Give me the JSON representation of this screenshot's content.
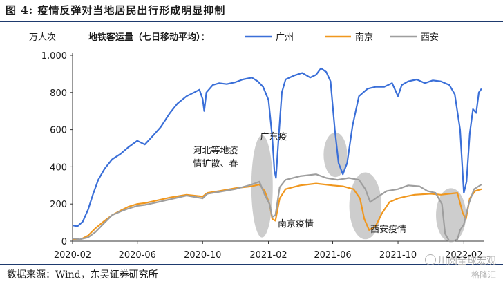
{
  "figure": {
    "title": "图 4:   疫情反弹对当地居民出行形成明显抑制",
    "source": "数据来源：Wind，东吴证券研究所",
    "watermark_top": "川阅全球宏观",
    "watermark_bottom": "格隆汇"
  },
  "chart_data": {
    "type": "line",
    "title": "地铁客运量（七日移动平均）：",
    "ylabel": "万人次",
    "ylim": [
      0,
      1000
    ],
    "yticks": [
      0,
      200,
      400,
      600,
      800,
      1000
    ],
    "ytick_labels": [
      "0",
      "200",
      "400",
      "600",
      "800",
      "1,000"
    ],
    "xticks": [
      "2020-02",
      "2020-06",
      "2020-10",
      "2021-02",
      "2021-06",
      "2021-10",
      "2022-02"
    ],
    "xlim": [
      "2020-02-01",
      "2022-03-10"
    ],
    "grid": false,
    "legend_position": "top",
    "series": [
      {
        "name": "广州",
        "color": "#3a6fd8",
        "points": [
          [
            "2020-02-01",
            85
          ],
          [
            "2020-02-10",
            80
          ],
          [
            "2020-02-20",
            105
          ],
          [
            "2020-03-01",
            170
          ],
          [
            "2020-03-10",
            250
          ],
          [
            "2020-03-20",
            330
          ],
          [
            "2020-04-01",
            390
          ],
          [
            "2020-04-15",
            440
          ],
          [
            "2020-05-01",
            470
          ],
          [
            "2020-05-15",
            505
          ],
          [
            "2020-06-01",
            540
          ],
          [
            "2020-06-15",
            520
          ],
          [
            "2020-07-01",
            570
          ],
          [
            "2020-07-15",
            615
          ],
          [
            "2020-08-01",
            690
          ],
          [
            "2020-08-15",
            740
          ],
          [
            "2020-09-01",
            780
          ],
          [
            "2020-09-15",
            800
          ],
          [
            "2020-09-25",
            815
          ],
          [
            "2020-10-01",
            765
          ],
          [
            "2020-10-04",
            700
          ],
          [
            "2020-10-08",
            800
          ],
          [
            "2020-10-20",
            840
          ],
          [
            "2020-11-01",
            850
          ],
          [
            "2020-11-15",
            845
          ],
          [
            "2020-12-01",
            855
          ],
          [
            "2020-12-15",
            870
          ],
          [
            "2021-01-01",
            880
          ],
          [
            "2021-01-12",
            860
          ],
          [
            "2021-01-22",
            830
          ],
          [
            "2021-02-01",
            760
          ],
          [
            "2021-02-08",
            560
          ],
          [
            "2021-02-12",
            380
          ],
          [
            "2021-02-15",
            340
          ],
          [
            "2021-02-20",
            560
          ],
          [
            "2021-02-26",
            800
          ],
          [
            "2021-03-05",
            870
          ],
          [
            "2021-03-20",
            890
          ],
          [
            "2021-04-05",
            905
          ],
          [
            "2021-04-20",
            880
          ],
          [
            "2021-05-01",
            895
          ],
          [
            "2021-05-10",
            930
          ],
          [
            "2021-05-20",
            910
          ],
          [
            "2021-05-28",
            860
          ],
          [
            "2021-06-05",
            600
          ],
          [
            "2021-06-12",
            420
          ],
          [
            "2021-06-20",
            360
          ],
          [
            "2021-06-28",
            420
          ],
          [
            "2021-07-08",
            620
          ],
          [
            "2021-07-20",
            780
          ],
          [
            "2021-08-05",
            820
          ],
          [
            "2021-08-20",
            830
          ],
          [
            "2021-09-05",
            830
          ],
          [
            "2021-09-20",
            850
          ],
          [
            "2021-10-01",
            780
          ],
          [
            "2021-10-08",
            840
          ],
          [
            "2021-10-20",
            860
          ],
          [
            "2021-11-05",
            870
          ],
          [
            "2021-11-20",
            850
          ],
          [
            "2021-12-05",
            865
          ],
          [
            "2021-12-20",
            860
          ],
          [
            "2022-01-05",
            840
          ],
          [
            "2022-01-15",
            790
          ],
          [
            "2022-01-25",
            600
          ],
          [
            "2022-02-01",
            260
          ],
          [
            "2022-02-06",
            320
          ],
          [
            "2022-02-12",
            580
          ],
          [
            "2022-02-18",
            710
          ],
          [
            "2022-02-24",
            690
          ],
          [
            "2022-03-01",
            800
          ],
          [
            "2022-03-06",
            820
          ]
        ]
      },
      {
        "name": "南京",
        "color": "#f0971e",
        "points": [
          [
            "2020-02-01",
            10
          ],
          [
            "2020-02-15",
            8
          ],
          [
            "2020-03-01",
            30
          ],
          [
            "2020-03-15",
            70
          ],
          [
            "2020-04-01",
            110
          ],
          [
            "2020-04-15",
            140
          ],
          [
            "2020-05-01",
            165
          ],
          [
            "2020-05-15",
            185
          ],
          [
            "2020-06-01",
            200
          ],
          [
            "2020-06-15",
            205
          ],
          [
            "2020-07-01",
            215
          ],
          [
            "2020-08-01",
            235
          ],
          [
            "2020-09-01",
            250
          ],
          [
            "2020-10-01",
            240
          ],
          [
            "2020-10-10",
            260
          ],
          [
            "2020-11-01",
            270
          ],
          [
            "2020-12-01",
            285
          ],
          [
            "2021-01-01",
            295
          ],
          [
            "2021-01-15",
            305
          ],
          [
            "2021-01-25",
            270
          ],
          [
            "2021-02-03",
            200
          ],
          [
            "2021-02-08",
            120
          ],
          [
            "2021-02-14",
            110
          ],
          [
            "2021-02-22",
            230
          ],
          [
            "2021-03-05",
            280
          ],
          [
            "2021-04-01",
            300
          ],
          [
            "2021-05-01",
            310
          ],
          [
            "2021-06-01",
            300
          ],
          [
            "2021-06-20",
            295
          ],
          [
            "2021-07-10",
            280
          ],
          [
            "2021-07-22",
            230
          ],
          [
            "2021-07-30",
            120
          ],
          [
            "2021-08-08",
            60
          ],
          [
            "2021-08-20",
            80
          ],
          [
            "2021-09-01",
            150
          ],
          [
            "2021-09-15",
            210
          ],
          [
            "2021-10-01",
            230
          ],
          [
            "2021-10-15",
            240
          ],
          [
            "2021-11-01",
            250
          ],
          [
            "2021-12-01",
            255
          ],
          [
            "2021-12-20",
            250
          ],
          [
            "2022-01-05",
            255
          ],
          [
            "2022-01-20",
            260
          ],
          [
            "2022-01-30",
            150
          ],
          [
            "2022-02-05",
            120
          ],
          [
            "2022-02-12",
            230
          ],
          [
            "2022-02-22",
            270
          ],
          [
            "2022-03-06",
            280
          ]
        ]
      },
      {
        "name": "西安",
        "color": "#9e9e9e",
        "points": [
          [
            "2020-02-01",
            15
          ],
          [
            "2020-02-15",
            10
          ],
          [
            "2020-03-01",
            20
          ],
          [
            "2020-03-15",
            50
          ],
          [
            "2020-04-01",
            100
          ],
          [
            "2020-04-15",
            140
          ],
          [
            "2020-05-01",
            160
          ],
          [
            "2020-05-15",
            175
          ],
          [
            "2020-06-01",
            190
          ],
          [
            "2020-06-15",
            195
          ],
          [
            "2020-07-01",
            205
          ],
          [
            "2020-08-01",
            225
          ],
          [
            "2020-09-01",
            245
          ],
          [
            "2020-10-01",
            230
          ],
          [
            "2020-10-10",
            255
          ],
          [
            "2020-11-01",
            265
          ],
          [
            "2020-12-01",
            280
          ],
          [
            "2021-01-01",
            305
          ],
          [
            "2021-01-15",
            320
          ],
          [
            "2021-01-25",
            250
          ],
          [
            "2021-02-03",
            200
          ],
          [
            "2021-02-08",
            130
          ],
          [
            "2021-02-14",
            140
          ],
          [
            "2021-02-22",
            290
          ],
          [
            "2021-03-05",
            330
          ],
          [
            "2021-04-01",
            350
          ],
          [
            "2021-05-01",
            360
          ],
          [
            "2021-05-20",
            340
          ],
          [
            "2021-06-10",
            330
          ],
          [
            "2021-07-01",
            340
          ],
          [
            "2021-07-20",
            330
          ],
          [
            "2021-08-01",
            280
          ],
          [
            "2021-08-10",
            210
          ],
          [
            "2021-08-25",
            240
          ],
          [
            "2021-09-10",
            270
          ],
          [
            "2021-10-01",
            280
          ],
          [
            "2021-10-20",
            300
          ],
          [
            "2021-11-10",
            295
          ],
          [
            "2021-11-25",
            270
          ],
          [
            "2021-12-10",
            260
          ],
          [
            "2021-12-22",
            200
          ],
          [
            "2021-12-28",
            40
          ],
          [
            "2022-01-05",
            0
          ],
          [
            "2022-01-12",
            0
          ],
          [
            "2022-01-20",
            10
          ],
          [
            "2022-01-25",
            60
          ],
          [
            "2022-02-01",
            90
          ],
          [
            "2022-02-10",
            200
          ],
          [
            "2022-02-20",
            280
          ],
          [
            "2022-03-06",
            305
          ]
        ]
      }
    ],
    "annotations": [
      {
        "text_lines": [
          "河北等地疫",
          "情扩散、春"
        ],
        "ellipse_center": [
          "2021-01-20",
          295
        ],
        "ellipse_rx_days": 20,
        "ellipse_ry": 275
      },
      {
        "text_lines": [
          "广东疫"
        ],
        "ellipse_center": [
          "2021-06-06",
          465
        ],
        "ellipse_rx_days": 22,
        "ellipse_ry": 120
      },
      {
        "text_lines": [
          "南京疫情"
        ],
        "ellipse_center": [
          "2021-08-01",
          190
        ],
        "ellipse_rx_days": 30,
        "ellipse_ry": 180
      },
      {
        "text_lines": [
          "西安疫情"
        ],
        "ellipse_center": [
          "2022-01-08",
          140
        ],
        "ellipse_rx_days": 28,
        "ellipse_ry": 145
      }
    ]
  }
}
